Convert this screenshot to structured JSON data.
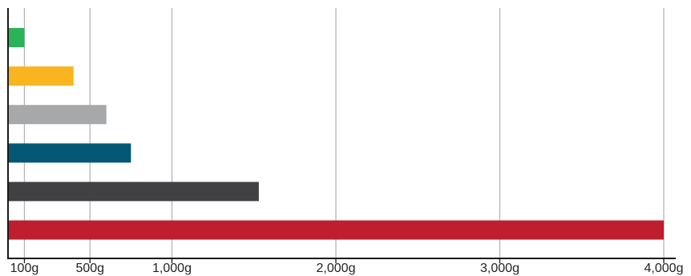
{
  "chart_data": {
    "type": "bar",
    "orientation": "horizontal",
    "title": "",
    "xlabel": "",
    "ylabel": "",
    "xlim": [
      0,
      4000
    ],
    "grid": true,
    "legend": "none",
    "ticks": [
      {
        "value": 100,
        "label": "100g"
      },
      {
        "value": 500,
        "label": "500g"
      },
      {
        "value": 1000,
        "label": "1,000g"
      },
      {
        "value": 2000,
        "label": "2,000g"
      },
      {
        "value": 3000,
        "label": "3,000g"
      },
      {
        "value": 4000,
        "label": "4,000g"
      }
    ],
    "bars": [
      {
        "value": 100,
        "color": "#2bb35a"
      },
      {
        "value": 400,
        "color": "#f9b51f"
      },
      {
        "value": 600,
        "color": "#a7a8aa"
      },
      {
        "value": 750,
        "color": "#045876"
      },
      {
        "value": 1530,
        "color": "#414042"
      },
      {
        "value": 4000,
        "color": "#be1e2d"
      }
    ]
  }
}
